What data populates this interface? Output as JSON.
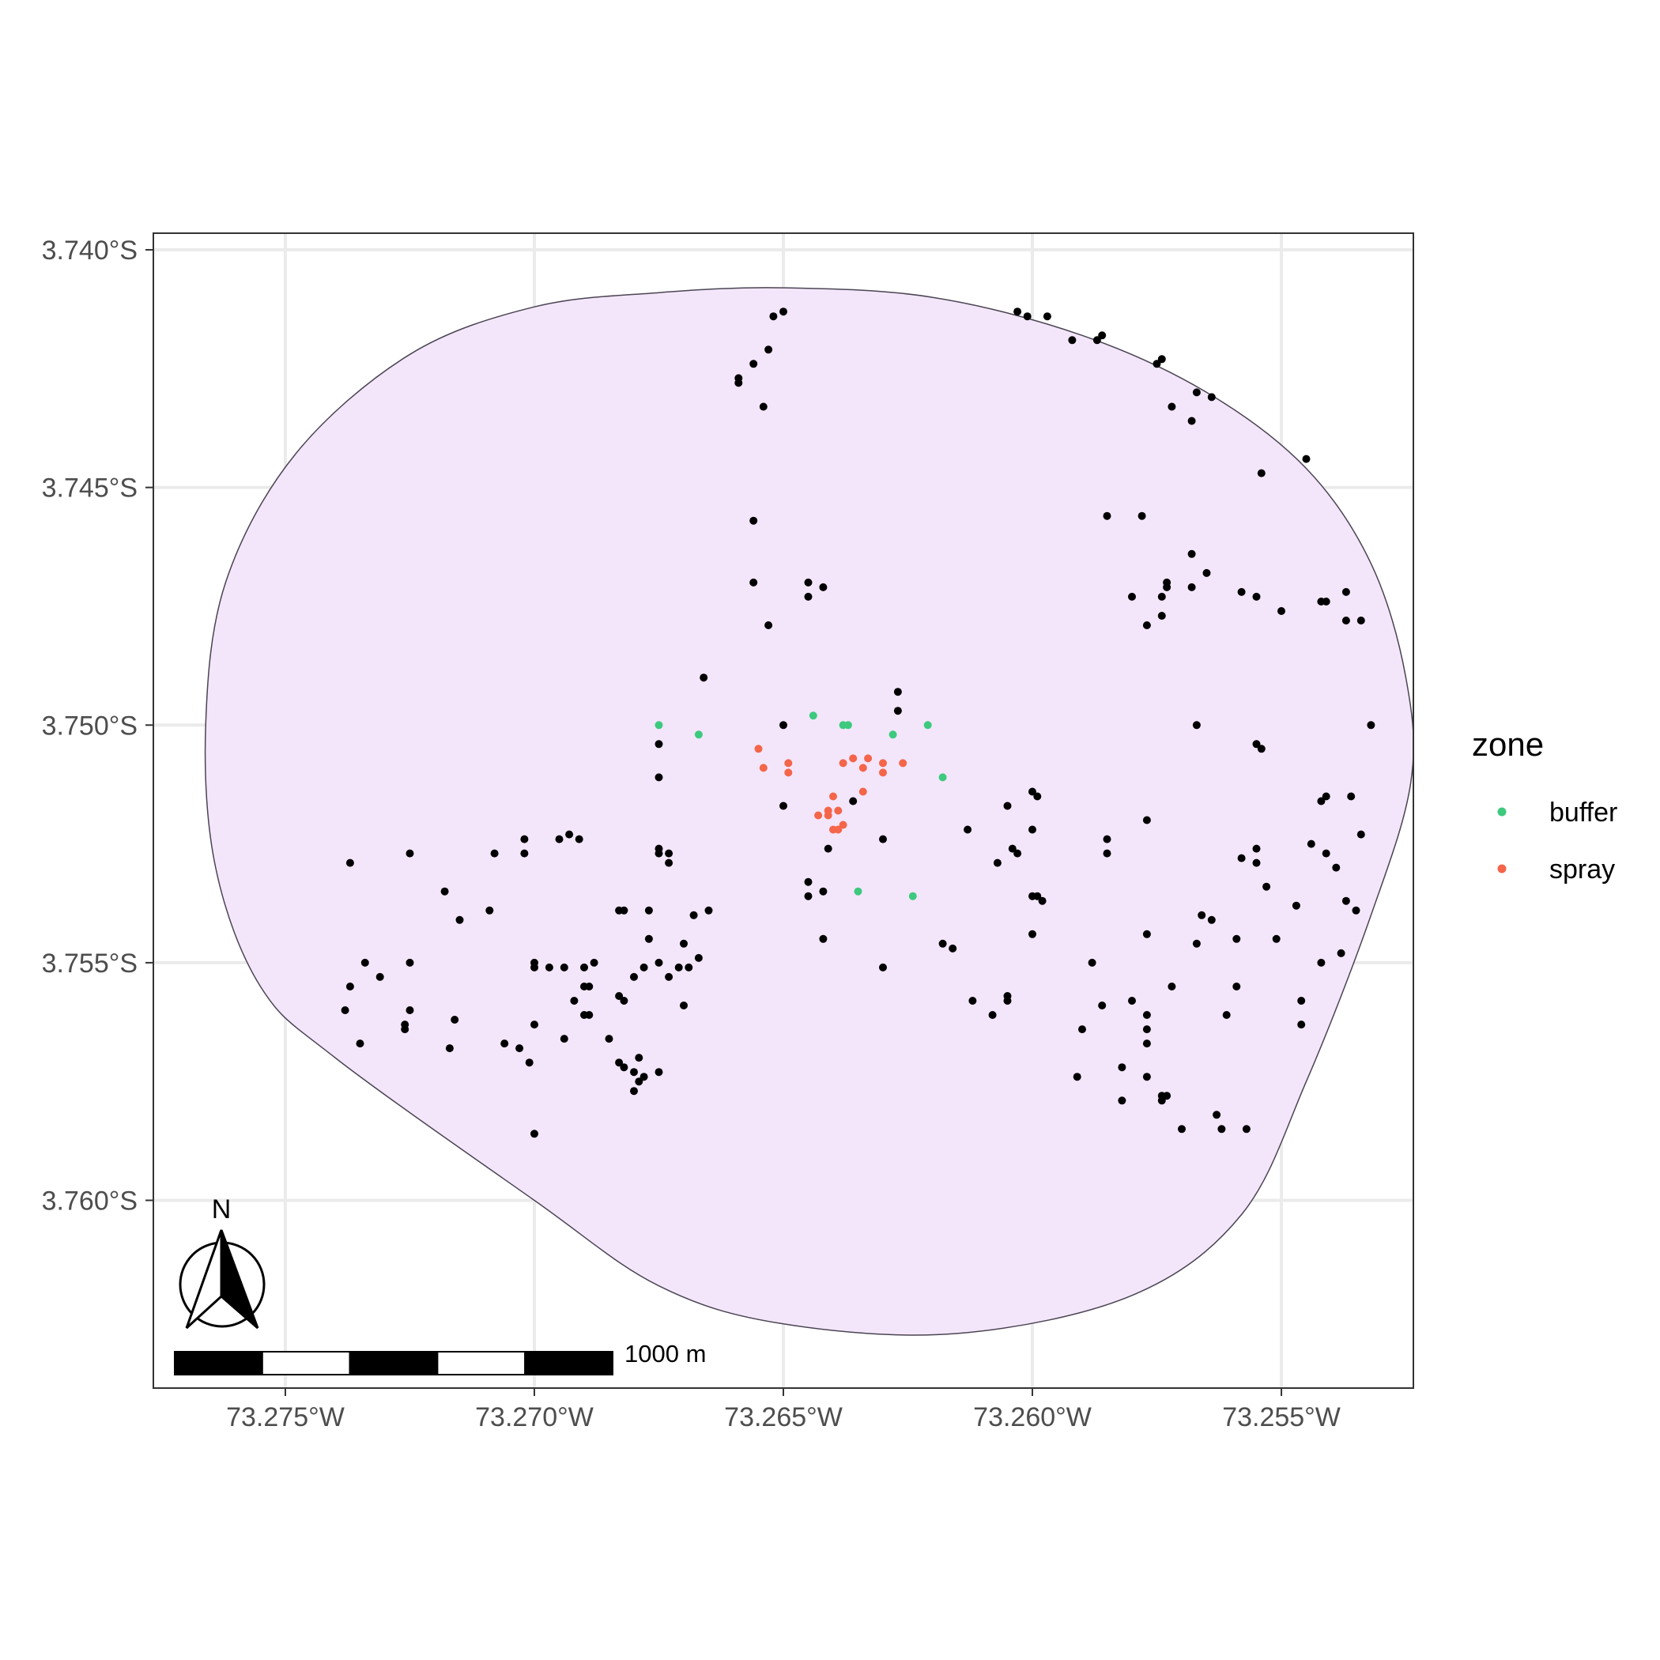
{
  "chart_data": {
    "type": "scatter",
    "title": "",
    "xlabel": "",
    "ylabel": "",
    "xlim": [
      -73.27765,
      -73.25235
    ],
    "ylim": [
      -3.76395,
      -3.73965
    ],
    "x_ticks": [
      {
        "value": -73.275,
        "label": "73.275°W"
      },
      {
        "value": -73.27,
        "label": "73.270°W"
      },
      {
        "value": -73.265,
        "label": "73.265°W"
      },
      {
        "value": -73.26,
        "label": "73.260°W"
      },
      {
        "value": -73.255,
        "label": "73.255°W"
      }
    ],
    "y_ticks": [
      {
        "value": -3.74,
        "label": "3.740°S"
      },
      {
        "value": -3.745,
        "label": "3.745°S"
      },
      {
        "value": -3.75,
        "label": "3.750°S"
      },
      {
        "value": -3.755,
        "label": "3.755°S"
      },
      {
        "value": -3.76,
        "label": "3.760°S"
      }
    ],
    "grid": true,
    "legend": {
      "title": "zone",
      "position": "right",
      "entries": [
        {
          "label": "buffer",
          "color": "#3dc97e"
        },
        {
          "label": "spray",
          "color": "#f4654a"
        }
      ]
    },
    "area": {
      "fill": "#f3e6fa",
      "stroke": "#4b4453",
      "boundary": [
        [
          -73.265,
          -3.7408
        ],
        [
          -73.262,
          -3.741
        ],
        [
          -73.259,
          -3.7418
        ],
        [
          -73.2565,
          -3.743
        ],
        [
          -73.2545,
          -3.7446
        ],
        [
          -73.2532,
          -3.7466
        ],
        [
          -73.2525,
          -3.749
        ],
        [
          -73.2524,
          -3.7512
        ],
        [
          -73.2532,
          -3.754
        ],
        [
          -73.2545,
          -3.7575
        ],
        [
          -73.2558,
          -3.7603
        ],
        [
          -73.258,
          -3.762
        ],
        [
          -73.2615,
          -3.7628
        ],
        [
          -73.265,
          -3.7626
        ],
        [
          -73.2675,
          -3.7618
        ],
        [
          -73.27,
          -3.76
        ],
        [
          -73.274,
          -3.757
        ],
        [
          -73.2755,
          -3.7555
        ],
        [
          -73.2764,
          -3.753
        ],
        [
          -73.2766,
          -3.75
        ],
        [
          -73.2762,
          -3.747
        ],
        [
          -73.2748,
          -3.7443
        ],
        [
          -73.2725,
          -3.7422
        ],
        [
          -73.27,
          -3.7412
        ],
        [
          -73.2675,
          -3.7409
        ]
      ]
    },
    "series": [
      {
        "color": "#000000",
        "points": [
          [
            -73.265,
            -3.7413
          ],
          [
            -73.2652,
            -3.7414
          ],
          [
            -73.2653,
            -3.7421
          ],
          [
            -73.2656,
            -3.7424
          ],
          [
            -73.2659,
            -3.7427
          ],
          [
            -73.2659,
            -3.7428
          ],
          [
            -73.2654,
            -3.7433
          ],
          [
            -73.2603,
            -3.7413
          ],
          [
            -73.2601,
            -3.7414
          ],
          [
            -73.2597,
            -3.7414
          ],
          [
            -73.2592,
            -3.7419
          ],
          [
            -73.2586,
            -3.7418
          ],
          [
            -73.2587,
            -3.7419
          ],
          [
            -73.2574,
            -3.7423
          ],
          [
            -73.2575,
            -3.7424
          ],
          [
            -73.2567,
            -3.743
          ],
          [
            -73.2564,
            -3.7431
          ],
          [
            -73.2572,
            -3.7433
          ],
          [
            -73.2568,
            -3.7436
          ],
          [
            -73.2545,
            -3.7444
          ],
          [
            -73.2554,
            -3.7447
          ],
          [
            -73.2585,
            -3.7456
          ],
          [
            -73.2578,
            -3.7456
          ],
          [
            -73.2568,
            -3.7464
          ],
          [
            -73.2565,
            -3.7468
          ],
          [
            -73.2573,
            -3.747
          ],
          [
            -73.2573,
            -3.7471
          ],
          [
            -73.2568,
            -3.7471
          ],
          [
            -73.258,
            -3.7473
          ],
          [
            -73.2574,
            -3.7473
          ],
          [
            -73.2558,
            -3.7472
          ],
          [
            -73.2555,
            -3.7473
          ],
          [
            -73.2537,
            -3.7472
          ],
          [
            -73.2542,
            -3.7474
          ],
          [
            -73.2541,
            -3.7474
          ],
          [
            -73.255,
            -3.7476
          ],
          [
            -73.2574,
            -3.7477
          ],
          [
            -73.2577,
            -3.7479
          ],
          [
            -73.2537,
            -3.7478
          ],
          [
            -73.2534,
            -3.7478
          ],
          [
            -73.2567,
            -3.75
          ],
          [
            -73.2532,
            -3.75
          ],
          [
            -73.2555,
            -3.7504
          ],
          [
            -73.2554,
            -3.7505
          ],
          [
            -73.2656,
            -3.7457
          ],
          [
            -73.2656,
            -3.747
          ],
          [
            -73.2645,
            -3.747
          ],
          [
            -73.2642,
            -3.7471
          ],
          [
            -73.2645,
            -3.7473
          ],
          [
            -73.2653,
            -3.7479
          ],
          [
            -73.2666,
            -3.749
          ],
          [
            -73.2627,
            -3.7493
          ],
          [
            -73.2627,
            -3.7497
          ],
          [
            -73.265,
            -3.75
          ],
          [
            -73.2675,
            -3.7504
          ],
          [
            -73.2675,
            -3.7511
          ],
          [
            -73.265,
            -3.7517
          ],
          [
            -73.2636,
            -3.7516
          ],
          [
            -73.2641,
            -3.7526
          ],
          [
            -73.263,
            -3.7524
          ],
          [
            -73.2645,
            -3.7533
          ],
          [
            -73.2645,
            -3.7536
          ],
          [
            -73.2642,
            -3.7535
          ],
          [
            -73.2642,
            -3.7545
          ],
          [
            -73.263,
            -3.7551
          ],
          [
            -73.26,
            -3.7514
          ],
          [
            -73.2599,
            -3.7515
          ],
          [
            -73.2605,
            -3.7517
          ],
          [
            -73.2613,
            -3.7522
          ],
          [
            -73.26,
            -3.7522
          ],
          [
            -73.2604,
            -3.7526
          ],
          [
            -73.2603,
            -3.7527
          ],
          [
            -73.2607,
            -3.7529
          ],
          [
            -73.26,
            -3.7536
          ],
          [
            -73.2599,
            -3.7536
          ],
          [
            -73.2598,
            -3.7537
          ],
          [
            -73.26,
            -3.7544
          ],
          [
            -73.2618,
            -3.7546
          ],
          [
            -73.2616,
            -3.7547
          ],
          [
            -73.2612,
            -3.7558
          ],
          [
            -73.2605,
            -3.7557
          ],
          [
            -73.2605,
            -3.7558
          ],
          [
            -73.2608,
            -3.7561
          ],
          [
            -73.2577,
            -3.752
          ],
          [
            -73.2585,
            -3.7524
          ],
          [
            -73.2585,
            -3.7527
          ],
          [
            -73.2558,
            -3.7528
          ],
          [
            -73.2555,
            -3.7526
          ],
          [
            -73.2555,
            -3.7529
          ],
          [
            -73.2544,
            -3.7525
          ],
          [
            -73.2541,
            -3.7527
          ],
          [
            -73.2539,
            -3.753
          ],
          [
            -73.2534,
            -3.7523
          ],
          [
            -73.2541,
            -3.7515
          ],
          [
            -73.2542,
            -3.7516
          ],
          [
            -73.2536,
            -3.7515
          ],
          [
            -73.2553,
            -3.7534
          ],
          [
            -73.2547,
            -3.7538
          ],
          [
            -73.2537,
            -3.7537
          ],
          [
            -73.2535,
            -3.7539
          ],
          [
            -73.2566,
            -3.754
          ],
          [
            -73.2564,
            -3.7541
          ],
          [
            -73.2577,
            -3.7544
          ],
          [
            -73.2567,
            -3.7546
          ],
          [
            -73.2559,
            -3.7545
          ],
          [
            -73.2551,
            -3.7545
          ],
          [
            -73.2538,
            -3.7548
          ],
          [
            -73.2542,
            -3.755
          ],
          [
            -73.2588,
            -3.755
          ],
          [
            -73.2572,
            -3.7555
          ],
          [
            -73.2559,
            -3.7555
          ],
          [
            -73.2561,
            -3.7561
          ],
          [
            -73.2546,
            -3.7558
          ],
          [
            -73.2546,
            -3.7563
          ],
          [
            -73.258,
            -3.7558
          ],
          [
            -73.2586,
            -3.7559
          ],
          [
            -73.2577,
            -3.7561
          ],
          [
            -73.259,
            -3.7564
          ],
          [
            -73.2577,
            -3.7564
          ],
          [
            -73.2577,
            -3.7567
          ],
          [
            -73.2582,
            -3.7572
          ],
          [
            -73.2591,
            -3.7574
          ],
          [
            -73.2577,
            -3.7574
          ],
          [
            -73.2574,
            -3.7578
          ],
          [
            -73.2573,
            -3.7578
          ],
          [
            -73.2582,
            -3.7579
          ],
          [
            -73.2574,
            -3.7579
          ],
          [
            -73.257,
            -3.7585
          ],
          [
            -73.2563,
            -3.7582
          ],
          [
            -73.2562,
            -3.7585
          ],
          [
            -73.2557,
            -3.7585
          ],
          [
            -73.2737,
            -3.7529
          ],
          [
            -73.2725,
            -3.7527
          ],
          [
            -73.2708,
            -3.7527
          ],
          [
            -73.2702,
            -3.7527
          ],
          [
            -73.2702,
            -3.7524
          ],
          [
            -73.2695,
            -3.7524
          ],
          [
            -73.2693,
            -3.7523
          ],
          [
            -73.2691,
            -3.7524
          ],
          [
            -73.2718,
            -3.7535
          ],
          [
            -73.2715,
            -3.7541
          ],
          [
            -73.2709,
            -3.7539
          ],
          [
            -73.2734,
            -3.755
          ],
          [
            -73.2737,
            -3.7555
          ],
          [
            -73.2731,
            -3.7553
          ],
          [
            -73.2725,
            -3.755
          ],
          [
            -73.2738,
            -3.756
          ],
          [
            -73.2735,
            -3.7567
          ],
          [
            -73.2726,
            -3.7563
          ],
          [
            -73.2726,
            -3.7564
          ],
          [
            -73.2725,
            -3.756
          ],
          [
            -73.2716,
            -3.7562
          ],
          [
            -73.2717,
            -3.7568
          ],
          [
            -73.2706,
            -3.7567
          ],
          [
            -73.2703,
            -3.7568
          ],
          [
            -73.27,
            -3.755
          ],
          [
            -73.27,
            -3.7551
          ],
          [
            -73.2697,
            -3.7551
          ],
          [
            -73.2694,
            -3.7551
          ],
          [
            -73.269,
            -3.7551
          ],
          [
            -73.2688,
            -3.755
          ],
          [
            -73.2689,
            -3.7555
          ],
          [
            -73.269,
            -3.7555
          ],
          [
            -73.2692,
            -3.7558
          ],
          [
            -73.269,
            -3.7561
          ],
          [
            -73.2689,
            -3.7561
          ],
          [
            -73.27,
            -3.7563
          ],
          [
            -73.2694,
            -3.7566
          ],
          [
            -73.2685,
            -3.7566
          ],
          [
            -73.2683,
            -3.7557
          ],
          [
            -73.2682,
            -3.7558
          ],
          [
            -73.268,
            -3.7553
          ],
          [
            -73.2678,
            -3.7551
          ],
          [
            -73.2675,
            -3.755
          ],
          [
            -73.2673,
            -3.7553
          ],
          [
            -73.2671,
            -3.7551
          ],
          [
            -73.2669,
            -3.7551
          ],
          [
            -73.2667,
            -3.7549
          ],
          [
            -73.267,
            -3.7546
          ],
          [
            -73.2668,
            -3.754
          ],
          [
            -73.2665,
            -3.7539
          ],
          [
            -73.2677,
            -3.7545
          ],
          [
            -73.267,
            -3.7559
          ],
          [
            -73.2683,
            -3.7539
          ],
          [
            -73.2682,
            -3.7539
          ],
          [
            -73.2677,
            -3.7539
          ],
          [
            -73.2675,
            -3.7526
          ],
          [
            -73.2675,
            -3.7527
          ],
          [
            -73.2673,
            -3.7527
          ],
          [
            -73.2673,
            -3.7529
          ],
          [
            -73.2683,
            -3.7571
          ],
          [
            -73.2679,
            -3.757
          ],
          [
            -73.2682,
            -3.7572
          ],
          [
            -73.268,
            -3.7573
          ],
          [
            -73.2679,
            -3.7575
          ],
          [
            -73.2675,
            -3.7573
          ],
          [
            -73.2678,
            -3.7574
          ],
          [
            -73.268,
            -3.7577
          ],
          [
            -73.2701,
            -3.7571
          ],
          [
            -73.27,
            -3.7586
          ]
        ]
      },
      {
        "name": "buffer",
        "color": "#3dc97e",
        "points": [
          [
            -73.2675,
            -3.75
          ],
          [
            -73.2667,
            -3.7502
          ],
          [
            -73.2644,
            -3.7498
          ],
          [
            -73.2638,
            -3.75
          ],
          [
            -73.2637,
            -3.75
          ],
          [
            -73.2628,
            -3.7502
          ],
          [
            -73.2621,
            -3.75
          ],
          [
            -73.2618,
            -3.7511
          ],
          [
            -73.2635,
            -3.7535
          ],
          [
            -73.2624,
            -3.7536
          ]
        ]
      },
      {
        "name": "spray",
        "color": "#f4654a",
        "points": [
          [
            -73.2655,
            -3.7505
          ],
          [
            -73.2654,
            -3.7509
          ],
          [
            -73.2649,
            -3.751
          ],
          [
            -73.2649,
            -3.7508
          ],
          [
            -73.2638,
            -3.7508
          ],
          [
            -73.2636,
            -3.7507
          ],
          [
            -73.2633,
            -3.7507
          ],
          [
            -73.263,
            -3.7508
          ],
          [
            -73.2626,
            -3.7508
          ],
          [
            -73.2634,
            -3.7509
          ],
          [
            -73.263,
            -3.751
          ],
          [
            -73.264,
            -3.7515
          ],
          [
            -73.2634,
            -3.7514
          ],
          [
            -73.2639,
            -3.7518
          ],
          [
            -73.2641,
            -3.7518
          ],
          [
            -73.2641,
            -3.7519
          ],
          [
            -73.2643,
            -3.7519
          ],
          [
            -73.2638,
            -3.7521
          ],
          [
            -73.264,
            -3.7522
          ],
          [
            -73.2639,
            -3.7522
          ]
        ]
      }
    ]
  },
  "scale_bar": {
    "label": "1000 m",
    "segments": [
      "#000000",
      "#ffffff",
      "#000000",
      "#ffffff",
      "#000000"
    ]
  },
  "north_arrow": {
    "label": "N",
    "icon": "north-arrow-icon"
  }
}
